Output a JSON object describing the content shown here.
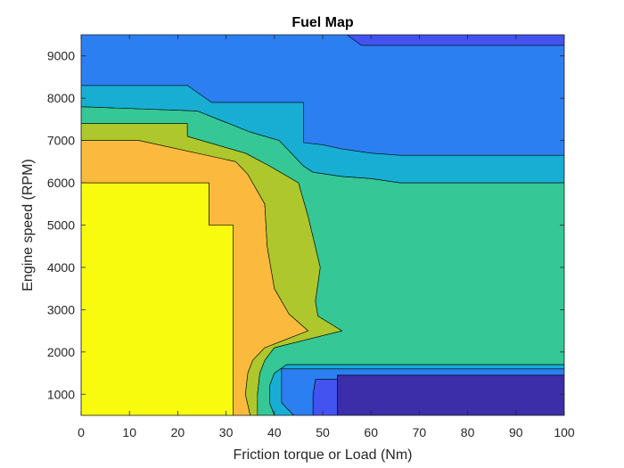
{
  "chart_data": {
    "type": "contourf",
    "title": "Fuel Map",
    "xlabel": "Friction torque or Load (Nm)",
    "ylabel": "Engine speed (RPM)",
    "xlim": [
      0,
      100
    ],
    "ylim": [
      500,
      9500
    ],
    "xticks": [
      0,
      10,
      20,
      30,
      40,
      50,
      60,
      70,
      80,
      90,
      100
    ],
    "yticks": [
      1000,
      2000,
      3000,
      4000,
      5000,
      6000,
      7000,
      8000,
      9000
    ],
    "grid": false,
    "background_color": "#2b7ff0",
    "regions": [
      {
        "level": 8,
        "color": "#f9fb0e",
        "points": [
          [
            0,
            500
          ],
          [
            31.5,
            500
          ],
          [
            31.5,
            5000
          ],
          [
            26.5,
            5000
          ],
          [
            26.5,
            6000
          ],
          [
            0,
            6000
          ]
        ]
      },
      {
        "level": 7,
        "color": "#fbba3d",
        "points": [
          [
            31.5,
            500
          ],
          [
            35,
            500
          ],
          [
            34,
            1000
          ],
          [
            34.5,
            1500
          ],
          [
            35.5,
            1800
          ],
          [
            38,
            2100
          ],
          [
            47,
            2500
          ],
          [
            43,
            2900
          ],
          [
            40,
            3500
          ],
          [
            38.5,
            4500
          ],
          [
            38,
            5500
          ],
          [
            34.5,
            6200
          ],
          [
            32,
            6500
          ],
          [
            12,
            7000
          ],
          [
            0,
            7000
          ],
          [
            0,
            6000
          ],
          [
            26.5,
            6000
          ],
          [
            26.5,
            5000
          ],
          [
            31.5,
            5000
          ]
        ]
      },
      {
        "level": 6,
        "color": "#aec72c",
        "points": [
          [
            35,
            500
          ],
          [
            36.5,
            500
          ],
          [
            36.5,
            1000
          ],
          [
            37,
            1500
          ],
          [
            38,
            1800
          ],
          [
            40,
            2100
          ],
          [
            54,
            2500
          ],
          [
            49,
            2850
          ],
          [
            48.5,
            3200
          ],
          [
            49.5,
            4000
          ],
          [
            47,
            5200
          ],
          [
            45,
            6000
          ],
          [
            39,
            6400
          ],
          [
            34,
            6700
          ],
          [
            31,
            6800
          ],
          [
            22,
            7100
          ],
          [
            22,
            7400
          ],
          [
            0,
            7400
          ],
          [
            0,
            7000
          ],
          [
            12,
            7000
          ],
          [
            32,
            6500
          ],
          [
            34.5,
            6200
          ],
          [
            38,
            5500
          ],
          [
            38.5,
            4500
          ],
          [
            40,
            3500
          ],
          [
            43,
            2900
          ],
          [
            47,
            2500
          ],
          [
            38,
            2100
          ],
          [
            35.5,
            1800
          ],
          [
            34.5,
            1500
          ],
          [
            34,
            1000
          ]
        ]
      },
      {
        "level": 5,
        "color": "#35c795",
        "points": [
          [
            36.5,
            500
          ],
          [
            40,
            500
          ],
          [
            39,
            800
          ],
          [
            39,
            1200
          ],
          [
            40,
            1500
          ],
          [
            42.5,
            1700
          ],
          [
            100,
            1700
          ],
          [
            100,
            6000
          ],
          [
            66,
            6000
          ],
          [
            60,
            6100
          ],
          [
            54,
            6150
          ],
          [
            48,
            6250
          ],
          [
            46,
            6400
          ],
          [
            41,
            7000
          ],
          [
            35,
            7200
          ],
          [
            24,
            7700
          ],
          [
            0,
            7800
          ],
          [
            0,
            7400
          ],
          [
            22,
            7400
          ],
          [
            22,
            7100
          ],
          [
            31,
            6800
          ],
          [
            34,
            6700
          ],
          [
            39,
            6400
          ],
          [
            45,
            6000
          ],
          [
            47,
            5200
          ],
          [
            49.5,
            4000
          ],
          [
            48.5,
            3200
          ],
          [
            49,
            2850
          ],
          [
            54,
            2500
          ],
          [
            40,
            2100
          ],
          [
            38,
            1800
          ],
          [
            37,
            1500
          ],
          [
            36.5,
            1000
          ]
        ]
      },
      {
        "level": 4,
        "color": "#18aed4",
        "points": [
          [
            40,
            500
          ],
          [
            44,
            500
          ],
          [
            41.5,
            800
          ],
          [
            41.5,
            1100
          ],
          [
            41.5,
            1600
          ],
          [
            43,
            1600
          ],
          [
            100,
            1600
          ],
          [
            100,
            1700
          ],
          [
            42.5,
            1700
          ],
          [
            40,
            1500
          ],
          [
            39,
            1200
          ],
          [
            39,
            800
          ]
        ]
      },
      {
        "level": 4,
        "color": "#18aed4",
        "points": [
          [
            0,
            7800
          ],
          [
            24,
            7700
          ],
          [
            35,
            7200
          ],
          [
            41,
            7000
          ],
          [
            46,
            6400
          ],
          [
            48,
            6250
          ],
          [
            54,
            6150
          ],
          [
            60,
            6100
          ],
          [
            66,
            6000
          ],
          [
            100,
            6000
          ],
          [
            100,
            6650
          ],
          [
            66,
            6650
          ],
          [
            60,
            6700
          ],
          [
            54,
            6800
          ],
          [
            50,
            6900
          ],
          [
            46,
            6950
          ],
          [
            46,
            7200
          ],
          [
            46,
            7900
          ],
          [
            27,
            7900
          ],
          [
            22,
            8300
          ],
          [
            0,
            8300
          ]
        ]
      },
      {
        "level": 3,
        "color": "#2b7ff0",
        "points": [
          [
            44,
            500
          ],
          [
            48,
            500
          ],
          [
            48,
            1000
          ],
          [
            48.5,
            1350
          ],
          [
            100,
            1350
          ],
          [
            100,
            1600
          ],
          [
            41.5,
            1600
          ],
          [
            41.5,
            1100
          ],
          [
            41.5,
            800
          ]
        ]
      },
      {
        "level": 2,
        "color": "#4353ef",
        "points": [
          [
            48,
            500
          ],
          [
            53,
            500
          ],
          [
            53,
            1450
          ],
          [
            100,
            1450
          ],
          [
            100,
            1350
          ],
          [
            48.5,
            1350
          ],
          [
            48,
            1000
          ]
        ]
      },
      {
        "level": 1,
        "color": "#3b2ea8",
        "points": [
          [
            53,
            500
          ],
          [
            100,
            500
          ],
          [
            100,
            1450
          ],
          [
            53,
            1450
          ]
        ]
      },
      {
        "level": 2,
        "color": "#4353ef",
        "points": [
          [
            55,
            9500
          ],
          [
            100,
            9500
          ],
          [
            100,
            9250
          ],
          [
            58,
            9250
          ]
        ]
      }
    ]
  }
}
